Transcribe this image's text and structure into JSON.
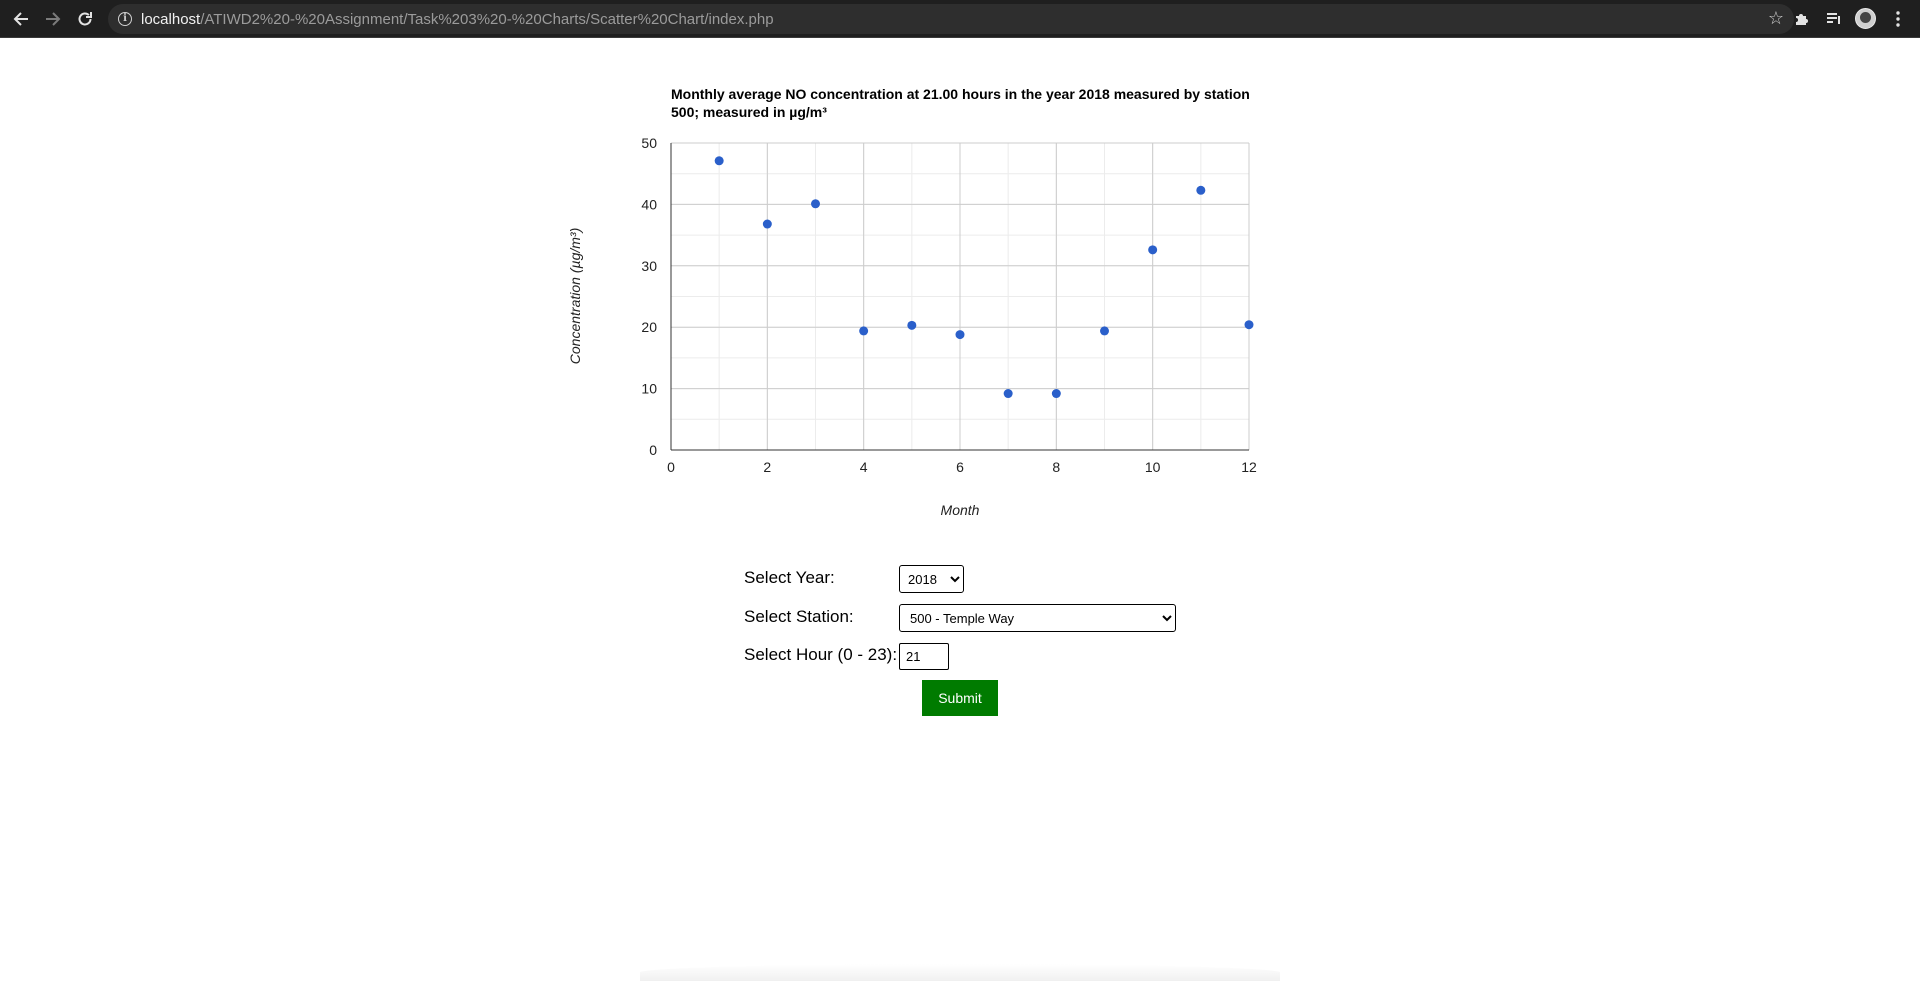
{
  "browser": {
    "url_host": "localhost",
    "url_path": "/ATIWD2%20-%20Assignment/Task%203%20-%20Charts/Scatter%20Chart/index.php",
    "icons": [
      "back-arrow-icon",
      "forward-arrow-icon",
      "reload-icon",
      "info-icon",
      "bookmark-star-icon",
      "extensions-puzzle-icon",
      "reading-list-icon",
      "profile-avatar-icon",
      "menu-kebab-icon"
    ]
  },
  "chart_data": {
    "type": "scatter",
    "title_lines": [
      "Monthly average NO concentration at 21.00 hours in the year 2018 measured by station",
      "500; measured in µg/m³"
    ],
    "xlabel": "Month",
    "ylabel": "Concentration (µg/m³)",
    "xlim": [
      0,
      12
    ],
    "ylim": [
      0,
      50
    ],
    "xticks": [
      "0",
      "2",
      "4",
      "6",
      "8",
      "10",
      "12"
    ],
    "yticks": [
      "0",
      "10",
      "20",
      "30",
      "40",
      "50"
    ],
    "grid": true,
    "point_color": "#2a5fca",
    "series": [
      {
        "x": [
          1,
          2,
          3,
          4,
          5,
          6,
          7,
          8,
          9,
          10,
          11,
          12
        ],
        "y": [
          47.1,
          36.8,
          40.1,
          19.4,
          20.3,
          18.8,
          9.2,
          9.2,
          19.4,
          32.6,
          42.3,
          20.4
        ]
      }
    ]
  },
  "form": {
    "year_label": "Select Year:",
    "year_value": "2018",
    "station_label": "Select Station:",
    "station_value": "500 - Temple Way",
    "hour_label": "Select Hour (0 - 23):",
    "hour_value": "21",
    "submit_label": "Submit",
    "submit_color": "#007b00"
  }
}
